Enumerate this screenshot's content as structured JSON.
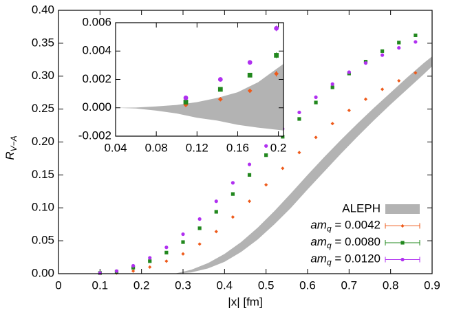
{
  "chart_data": [
    {
      "type": "scatter",
      "x_label": "|x| [fm]",
      "y_label": "RV−A",
      "xlim": [
        0,
        0.9
      ],
      "ylim": [
        0,
        0.4
      ],
      "xticks": [
        0,
        0.1,
        0.2,
        0.3,
        0.4,
        0.5,
        0.6,
        0.7,
        0.8,
        0.9
      ],
      "yticks": [
        {
          "value": 0,
          "label": "0.00"
        },
        0.05,
        {
          "value": 0.1,
          "label": "0.10"
        },
        0.15,
        {
          "value": 0.2,
          "label": "0.20"
        },
        0.25,
        {
          "value": 0.3,
          "label": "0.30"
        },
        0.35,
        {
          "value": 0.4,
          "label": "0.40"
        }
      ],
      "legend": "lower right",
      "band": {
        "name": "ALEPH",
        "color": "#b3b3b3",
        "x": [
          0.28,
          0.32,
          0.36,
          0.4,
          0.44,
          0.48,
          0.52,
          0.56,
          0.6,
          0.64,
          0.68,
          0.72,
          0.76,
          0.8,
          0.84,
          0.88,
          0.9
        ],
        "lower": [
          0,
          0.002,
          0.008,
          0.018,
          0.033,
          0.052,
          0.075,
          0.1,
          0.128,
          0.155,
          0.182,
          0.208,
          0.233,
          0.257,
          0.28,
          0.303,
          0.315
        ],
        "upper": [
          0,
          0.006,
          0.016,
          0.03,
          0.048,
          0.07,
          0.095,
          0.122,
          0.15,
          0.177,
          0.203,
          0.228,
          0.252,
          0.275,
          0.298,
          0.32,
          0.33
        ]
      },
      "series": [
        {
          "name": "amq = 0.0042",
          "color": "#ee5a1a",
          "marker": "diamond",
          "x": [
            0.1,
            0.14,
            0.18,
            0.22,
            0.26,
            0.3,
            0.34,
            0.38,
            0.42,
            0.46,
            0.5,
            0.54,
            0.58,
            0.62,
            0.66,
            0.7,
            0.74,
            0.78,
            0.82,
            0.86
          ],
          "values": [
            0.0002,
            0.001,
            0.004,
            0.01,
            0.019,
            0.03,
            0.045,
            0.064,
            0.086,
            0.11,
            0.135,
            0.16,
            0.184,
            0.207,
            0.228,
            0.248,
            0.265,
            0.28,
            0.293,
            0.305
          ]
        },
        {
          "name": "amq = 0.0080",
          "color": "#22881e",
          "marker": "square",
          "x": [
            0.1,
            0.14,
            0.18,
            0.22,
            0.26,
            0.3,
            0.34,
            0.38,
            0.42,
            0.46,
            0.5,
            0.54,
            0.58,
            0.62,
            0.66,
            0.7,
            0.74,
            0.78,
            0.82,
            0.86
          ],
          "values": [
            0.001,
            0.003,
            0.009,
            0.019,
            0.032,
            0.048,
            0.069,
            0.094,
            0.121,
            0.15,
            0.18,
            0.208,
            0.235,
            0.26,
            0.283,
            0.304,
            0.322,
            0.338,
            0.351,
            0.362
          ]
        },
        {
          "name": "amq = 0.0120",
          "color": "#b030f0",
          "marker": "circle",
          "x": [
            0.1,
            0.14,
            0.18,
            0.22,
            0.26,
            0.3,
            0.34,
            0.38,
            0.42,
            0.46,
            0.5,
            0.54,
            0.58,
            0.62,
            0.66,
            0.7,
            0.74,
            0.78,
            0.82,
            0.86
          ],
          "values": [
            0.001,
            0.004,
            0.012,
            0.024,
            0.04,
            0.06,
            0.083,
            0.11,
            0.138,
            0.166,
            0.194,
            0.22,
            0.245,
            0.268,
            0.288,
            0.306,
            0.32,
            0.332,
            0.343,
            0.352
          ]
        }
      ]
    },
    {
      "type": "scatter",
      "xlim": [
        0.04,
        0.205
      ],
      "ylim": [
        -0.002,
        0.006
      ],
      "xticks": [
        0.04,
        0.08,
        0.12,
        0.16,
        0.2
      ],
      "yticks": [
        -0.002,
        {
          "value": 0,
          "label": "0.000"
        },
        0.002,
        0.004,
        0.006
      ],
      "band": {
        "color": "#b3b3b3",
        "x": [
          0.04,
          0.06,
          0.08,
          0.1,
          0.12,
          0.14,
          0.16,
          0.18,
          0.205
        ],
        "lower": [
          0,
          -5e-05,
          -0.0002,
          -0.0004,
          -0.0007,
          -0.0009,
          -0.0012,
          -0.0014,
          -0.0016
        ],
        "upper": [
          0,
          2e-05,
          0.0001,
          0.0002,
          0.0004,
          0.0007,
          0.0011,
          0.0018,
          0.0031
        ]
      },
      "series": [
        {
          "color": "#ee5a1a",
          "marker": "diamond",
          "x": [
            0.109,
            0.143,
            0.172,
            0.198
          ],
          "values": [
            0.0002,
            0.0006,
            0.0012,
            0.0024
          ],
          "errors": [
            0.0001,
            0.0001,
            0.00012,
            0.0002
          ]
        },
        {
          "color": "#22881e",
          "marker": "square",
          "x": [
            0.109,
            0.143,
            0.172,
            0.198
          ],
          "values": [
            0.0004,
            0.0013,
            0.0023,
            0.0037
          ],
          "errors": [
            0.0001,
            0.0001,
            0.00012,
            0.0002
          ]
        },
        {
          "color": "#b030f0",
          "marker": "circle",
          "x": [
            0.109,
            0.143,
            0.172,
            0.198
          ],
          "values": [
            0.0007,
            0.002,
            0.0032,
            0.0056
          ],
          "errors": [
            0.0001,
            0.0001,
            0.00015,
            0.0002
          ]
        }
      ]
    }
  ]
}
